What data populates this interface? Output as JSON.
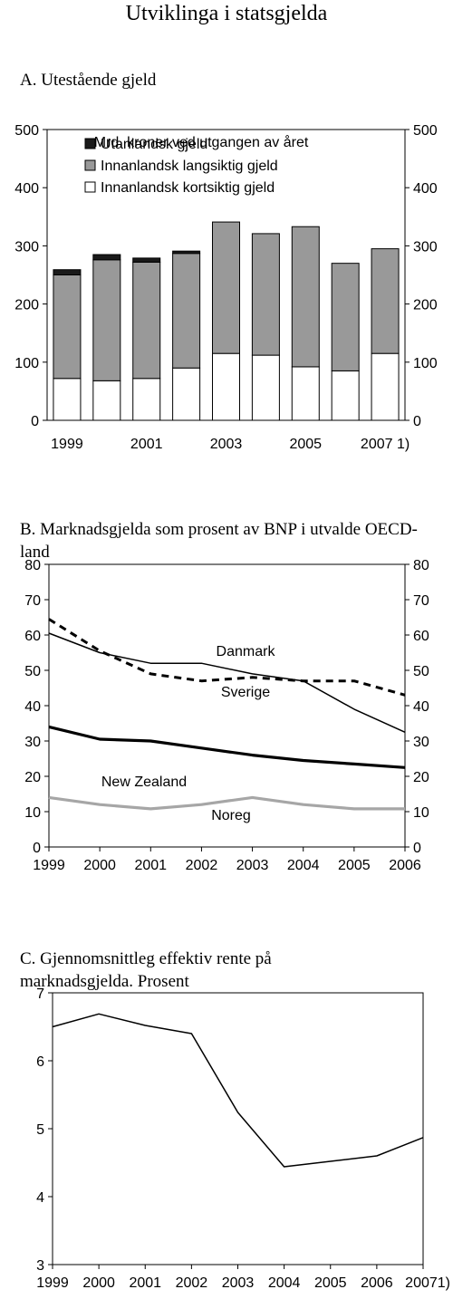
{
  "page_title": "Utviklinga i statsgjelda",
  "chart_data": [
    {
      "panel_title": "A. Utestående gjeld",
      "type": "bar",
      "stacked": true,
      "subtitle": "Mrd. kroner ved utgangen av året",
      "categories": [
        "1999",
        "2000",
        "2001",
        "2002",
        "2003",
        "2004",
        "2005",
        "2006",
        "2007 1)"
      ],
      "x_tick_labels": [
        "1999",
        "",
        "2001",
        "",
        "2003",
        "",
        "2005",
        "",
        "2007 1)"
      ],
      "series": [
        {
          "name": "Innanlandsk kortsiktig gjeld",
          "color": "#ffffff",
          "values": [
            72,
            68,
            72,
            90,
            115,
            112,
            92,
            85,
            115
          ]
        },
        {
          "name": "Innanlandsk langsiktig gjeld",
          "color": "#999999",
          "values": [
            178,
            208,
            200,
            197,
            226,
            209,
            241,
            185,
            180
          ]
        },
        {
          "name": "Utanlandsk gjeld",
          "color": "#1a1a1a",
          "values": [
            9,
            9,
            7,
            4,
            0,
            0,
            0,
            0,
            0
          ]
        }
      ],
      "legend_order": [
        "Utanlandsk gjeld",
        "Innanlandsk langsiktig gjeld",
        "Innanlandsk kortsiktig gjeld"
      ],
      "legend_position": "top-left",
      "ylim": [
        0,
        500
      ],
      "yticks": [
        0,
        100,
        200,
        300,
        400,
        500
      ],
      "grid": false
    },
    {
      "panel_title": "B. Marknadsgjelda som prosent av BNP i utvalde OECD-land",
      "type": "line",
      "x": [
        "1999",
        "2000",
        "2001",
        "2002",
        "2003",
        "2004",
        "2005",
        "2006"
      ],
      "series": [
        {
          "name": "Danmark",
          "color": "#000000",
          "style": "solid-thin",
          "values": [
            60.5,
            55,
            52,
            52,
            49,
            47,
            39,
            32.5
          ]
        },
        {
          "name": "Sverige",
          "color": "#000000",
          "style": "dashed",
          "values": [
            64.5,
            55.5,
            49,
            47,
            48,
            47,
            47,
            43
          ]
        },
        {
          "name": "New Zealand",
          "color": "#000000",
          "style": "solid-thick",
          "values": [
            34,
            30.5,
            30,
            28,
            26,
            24.5,
            23.5,
            22.5
          ]
        },
        {
          "name": "Noreg",
          "color": "#a6a6a6",
          "style": "solid-thick",
          "values": [
            14,
            12,
            10.8,
            12,
            14,
            12,
            10.8,
            10.8
          ]
        }
      ],
      "ylim": [
        0,
        80
      ],
      "yticks": [
        0,
        10,
        20,
        30,
        40,
        50,
        60,
        70,
        80
      ],
      "grid": false
    },
    {
      "panel_title": "C. Gjennomsnittleg effektiv rente på marknadsgjelda. Prosent",
      "type": "line",
      "x": [
        "1999",
        "2000",
        "2001",
        "2002",
        "2003",
        "2004",
        "2005",
        "2006",
        "20071)"
      ],
      "series": [
        {
          "color": "#000000",
          "values": [
            6.5,
            6.69,
            6.52,
            6.4,
            5.24,
            4.44,
            4.52,
            4.6,
            4.87
          ]
        }
      ],
      "ylim": [
        3,
        7
      ],
      "yticks": [
        3,
        4,
        5,
        6,
        7
      ],
      "grid": false
    }
  ]
}
